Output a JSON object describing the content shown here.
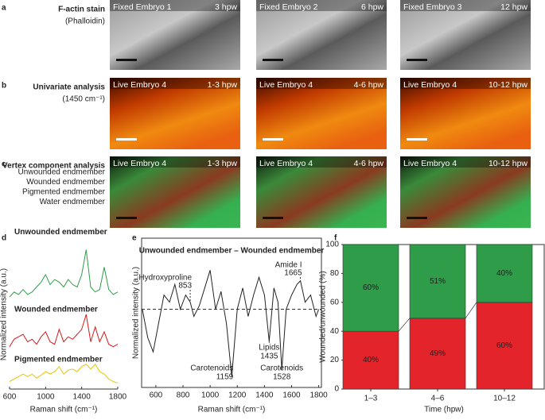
{
  "panels": [
    {
      "label": "a",
      "title": "F-actin stain",
      "subtitle": "(Phalloidin)",
      "images": [
        {
          "name": "Fixed Embryo 1",
          "time": "3 hpw"
        },
        {
          "name": "Fixed Embryo 2",
          "time": "6 hpw"
        },
        {
          "name": "Fixed Embryo 3",
          "time": "12 hpw"
        }
      ]
    },
    {
      "label": "b",
      "title": "Univariate analysis",
      "subtitle": "(1450 cm⁻¹)",
      "images": [
        {
          "name": "Live Embryo 4",
          "time": "1-3 hpw"
        },
        {
          "name": "Live Embryo 4",
          "time": "4-6 hpw"
        },
        {
          "name": "Live Embryo 4",
          "time": "10-12 hpw"
        }
      ]
    },
    {
      "label": "c",
      "title": "Vertex component analysis",
      "endmembers": [
        {
          "text": "Unwounded endmember",
          "color": "#2e9c48"
        },
        {
          "text": "Wounded endmember",
          "color": "#d7191c"
        },
        {
          "text": "Pigmented endmember",
          "color": "#e8c400"
        },
        {
          "text": "Water endmember",
          "color": "#222222"
        }
      ],
      "images": [
        {
          "name": "Live Embryo 4",
          "time": "1-3 hpw"
        },
        {
          "name": "Live Embryo 4",
          "time": "4-6 hpw"
        },
        {
          "name": "Live Embryo 4",
          "time": "10-12 hpw"
        }
      ]
    }
  ],
  "chart_data": [
    {
      "panel": "d",
      "type": "line",
      "xlabel": "Raman shift (cm⁻¹)",
      "ylabel": "Normalized intensity (a.u.)",
      "xlim": [
        600,
        1800
      ],
      "xticks": [
        600,
        1000,
        1400,
        1800
      ],
      "ylim": [
        0,
        3
      ],
      "x": [
        600,
        650,
        700,
        750,
        800,
        850,
        900,
        950,
        1000,
        1050,
        1100,
        1150,
        1200,
        1250,
        1300,
        1350,
        1400,
        1450,
        1500,
        1550,
        1600,
        1650,
        1700,
        1750,
        1800
      ],
      "series": [
        {
          "name": "Unwounded endmember",
          "color": "#2e9c48",
          "values": [
            1.85,
            1.95,
            1.9,
            2.0,
            1.9,
            1.95,
            2.05,
            2.15,
            2.3,
            2.1,
            2.2,
            2.15,
            2.05,
            2.2,
            2.1,
            2.05,
            2.3,
            2.8,
            2.05,
            1.95,
            2.0,
            2.45,
            2.0,
            1.9,
            1.95
          ]
        },
        {
          "name": "Wounded endmember",
          "color": "#d7191c",
          "values": [
            0.85,
            1.0,
            1.05,
            1.1,
            0.95,
            1.0,
            0.9,
            1.05,
            1.15,
            0.95,
            0.9,
            1.2,
            0.95,
            1.05,
            1.0,
            1.1,
            1.2,
            1.5,
            0.95,
            1.25,
            0.95,
            1.15,
            0.9,
            0.85,
            0.9
          ]
        },
        {
          "name": "Pigmented endmember",
          "color": "#e8c400",
          "values": [
            0.15,
            0.2,
            0.25,
            0.3,
            0.25,
            0.3,
            0.22,
            0.28,
            0.35,
            0.3,
            0.35,
            0.45,
            0.3,
            0.38,
            0.4,
            0.35,
            0.45,
            0.5,
            0.4,
            0.5,
            0.35,
            0.3,
            0.2,
            0.15,
            0.12
          ]
        }
      ]
    },
    {
      "panel": "e",
      "type": "line",
      "title": "Unwounded endmember – Wounded endmember",
      "xlabel": "Raman shift (cm⁻¹)",
      "ylabel": "Normalized intensity (a.u.)",
      "xlim": [
        495,
        1820
      ],
      "xticks": [
        600,
        800,
        1000,
        1200,
        1400,
        1600,
        1800
      ],
      "ylim": [
        -1.1,
        1.0
      ],
      "x": [
        500,
        540,
        580,
        620,
        660,
        700,
        740,
        780,
        820,
        853,
        880,
        920,
        960,
        1000,
        1040,
        1080,
        1120,
        1159,
        1200,
        1240,
        1280,
        1320,
        1360,
        1400,
        1435,
        1470,
        1500,
        1528,
        1560,
        1600,
        1640,
        1665,
        1700,
        1740,
        1780,
        1800
      ],
      "series": [
        {
          "color": "#222222",
          "values": [
            0.0,
            -0.4,
            -0.6,
            -0.2,
            0.2,
            0.1,
            0.35,
            0.0,
            0.2,
            0.1,
            -0.1,
            0.05,
            0.3,
            0.55,
            0.0,
            0.25,
            -0.2,
            -0.95,
            0.0,
            0.3,
            -0.1,
            0.2,
            0.45,
            0.2,
            -0.45,
            0.3,
            0.1,
            -0.85,
            0.0,
            0.2,
            0.35,
            0.4,
            0.1,
            0.2,
            -0.1,
            0.0
          ]
        }
      ],
      "annotations": [
        {
          "label": "Hydroxyproline",
          "x": 853,
          "color": "#2e9c48"
        },
        {
          "label": "Amide I",
          "x": 1665,
          "color": "#2e9c48"
        },
        {
          "label": "Carotenoids",
          "x": 1159,
          "color": "#d7191c"
        },
        {
          "label": "Lipids",
          "x": 1435,
          "color": "#d7191c"
        },
        {
          "label": "Carotenoids",
          "x": 1528,
          "color": "#d7191c"
        }
      ]
    },
    {
      "panel": "f",
      "type": "bar",
      "stacked": true,
      "xlabel": "Time (hpw)",
      "ylabel": "Wounded/unwounded (%)",
      "categories": [
        "1–3",
        "4–6",
        "10–12"
      ],
      "ylim": [
        0,
        100
      ],
      "yticks": [
        0,
        20,
        40,
        60,
        80,
        100
      ],
      "series": [
        {
          "color": "#e3242b",
          "values": [
            40,
            49,
            60
          ],
          "value_labels": [
            "40%",
            "49%",
            "60%"
          ]
        },
        {
          "color": "#2e9c48",
          "values": [
            60,
            51,
            40
          ],
          "value_labels": [
            "60%",
            "51%",
            "40%"
          ]
        }
      ]
    }
  ]
}
